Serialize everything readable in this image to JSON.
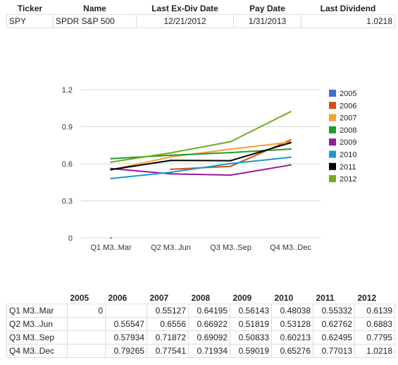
{
  "summary": {
    "headers": [
      "Ticker",
      "Name",
      "Last Ex-Div Date",
      "Pay Date",
      "Last Dividend"
    ],
    "row": [
      "SPY",
      "SPDR S&P 500",
      "12/21/2012",
      "1/31/2013",
      "1.0218"
    ]
  },
  "chart_data": {
    "type": "line",
    "categories": [
      "Q1 M3..Mar",
      "Q2 M3..Jun",
      "Q3 M3..Sep",
      "Q4 M3..Dec"
    ],
    "yticks": [
      "0",
      "0.3",
      "0.6",
      "0.9",
      "1.2"
    ],
    "ylim": [
      0,
      1.2
    ],
    "grid": true,
    "legend_position": "right",
    "series": [
      {
        "name": "2005",
        "color": "#3b6fd0",
        "values": [
          0,
          null,
          null,
          null
        ]
      },
      {
        "name": "2006",
        "color": "#d84a1b",
        "values": [
          null,
          0.55547,
          0.57934,
          0.79265
        ]
      },
      {
        "name": "2007",
        "color": "#f7a12a",
        "values": [
          0.55127,
          0.6556,
          0.71872,
          0.77541
        ]
      },
      {
        "name": "2008",
        "color": "#239b2c",
        "values": [
          0.64195,
          0.66922,
          0.69092,
          0.71934
        ]
      },
      {
        "name": "2009",
        "color": "#951c9c",
        "values": [
          0.56143,
          0.51819,
          0.50833,
          0.59019
        ]
      },
      {
        "name": "2010",
        "color": "#1a9bc4",
        "values": [
          0.48038,
          0.53128,
          0.60213,
          0.65276
        ]
      },
      {
        "name": "2011",
        "color": "#000000",
        "values": [
          0.55332,
          0.62762,
          0.62495,
          0.77013
        ]
      },
      {
        "name": "2012",
        "color": "#6fac1f",
        "values": [
          0.6139,
          0.6883,
          0.7795,
          1.0218
        ]
      }
    ]
  },
  "data_table": {
    "headers": [
      "",
      "2005",
      "2006",
      "2007",
      "2008",
      "2009",
      "2010",
      "2011",
      "2012"
    ],
    "rows": [
      [
        "Q1 M3..Mar",
        "0",
        "",
        "0.55127",
        "0.64195",
        "0.56143",
        "0.48038",
        "0.55332",
        "0.6139"
      ],
      [
        "Q2 M3..Jun",
        "",
        "0.55547",
        "0.6556",
        "0.66922",
        "0.51819",
        "0.53128",
        "0.62762",
        "0.6883"
      ],
      [
        "Q3 M3..Sep",
        "",
        "0.57934",
        "0.71872",
        "0.69092",
        "0.50833",
        "0.60213",
        "0.62495",
        "0.7795"
      ],
      [
        "Q4 M3..Dec",
        "",
        "0.79265",
        "0.77541",
        "0.71934",
        "0.59019",
        "0.65276",
        "0.77013",
        "1.0218"
      ]
    ]
  }
}
